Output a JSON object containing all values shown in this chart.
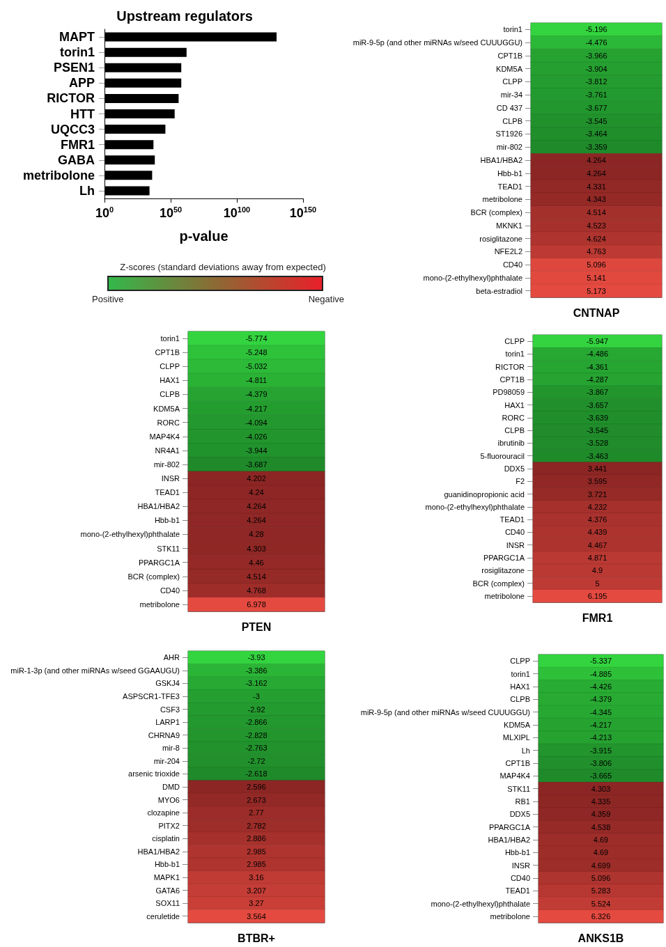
{
  "chart_data": [
    {
      "type": "bar",
      "title": "Upstream regulators",
      "xlabel": "p-value",
      "orientation": "horizontal",
      "log": "x",
      "color": "#000000",
      "grid": false,
      "categories": [
        "MAPT",
        "torin1",
        "PSEN1",
        "APP",
        "RICTOR",
        "HTT",
        "UQCC3",
        "FMR1",
        "GABA",
        "metribolone",
        "Lh"
      ],
      "values": [
        1e+130,
        1e+62,
        1e+58,
        1e+58,
        1e+56,
        1e+53,
        1e+46,
        1e+37,
        1e+38,
        1e+36,
        1e+34
      ],
      "xlim": [
        1,
        1e+150
      ],
      "xticks": [
        {
          "value": 1,
          "label": "10$^{0}$"
        },
        {
          "value": 1e+50,
          "label": "10$^{50}$"
        },
        {
          "value": 1e+100,
          "label": "10$^{100}$"
        },
        {
          "value": 1e+150,
          "label": "10$^{150}$"
        }
      ]
    },
    {
      "type": "other",
      "title": "Z-scores (standard deviations away from expected)",
      "annotations": [
        "Positive",
        "Negative"
      ],
      "colors": [
        "#33b84a",
        "#8c6a34",
        "#e8202a"
      ]
    },
    {
      "type": "heatmap",
      "xlabel": "CNTNAP",
      "categories": [
        null
      ],
      "data_labels": true,
      "y_categories": [
        "torin1",
        "miR-9-5p (and other miRNAs w/seed CUUUGGU)",
        "CPT1B",
        "KDM5A",
        "CLPP",
        "mir-34",
        "CD 437",
        "CLPB",
        "ST1926",
        "mir-802",
        "HBA1/HBA2",
        "Hbb-b1",
        "TEAD1",
        "metribolone",
        "BCR (complex)",
        "MKNK1",
        "rosiglitazone",
        "NFE2L2",
        "CD40",
        "mono-(2-ethylhexyl)phthalate",
        "beta-estradiol"
      ],
      "cells": [
        [
          -5.196
        ],
        [
          -4.476
        ],
        [
          -3.966
        ],
        [
          -3.904
        ],
        [
          -3.812
        ],
        [
          -3.761
        ],
        [
          -3.677
        ],
        [
          -3.545
        ],
        [
          -3.464
        ],
        [
          -3.359
        ],
        [
          4.264
        ],
        [
          4.264
        ],
        [
          4.331
        ],
        [
          4.343
        ],
        [
          4.514
        ],
        [
          4.523
        ],
        [
          4.624
        ],
        [
          4.763
        ],
        [
          5.096
        ],
        [
          5.141
        ],
        [
          5.173
        ]
      ]
    },
    {
      "type": "heatmap",
      "xlabel": "PTEN",
      "categories": [
        null
      ],
      "data_labels": true,
      "y_categories": [
        "torin1",
        "CPT1B",
        "CLPP",
        "HAX1",
        "CLPB",
        "KDM5A",
        "RORC",
        "MAP4K4",
        "NR4A1",
        "mir-802",
        "INSR",
        "TEAD1",
        "HBA1/HBA2",
        "Hbb-b1",
        "mono-(2-ethylhexyl)phthalate",
        "STK11",
        "PPARGC1A",
        "BCR (complex)",
        "CD40",
        "metribolone"
      ],
      "cells": [
        [
          -5.774
        ],
        [
          -5.248
        ],
        [
          -5.032
        ],
        [
          -4.811
        ],
        [
          -4.379
        ],
        [
          -4.217
        ],
        [
          -4.094
        ],
        [
          -4.026
        ],
        [
          -3.944
        ],
        [
          -3.687
        ],
        [
          4.202
        ],
        [
          4.24
        ],
        [
          4.264
        ],
        [
          4.264
        ],
        [
          4.28
        ],
        [
          4.303
        ],
        [
          4.46
        ],
        [
          4.514
        ],
        [
          4.768
        ],
        [
          6.978
        ]
      ]
    },
    {
      "type": "heatmap",
      "xlabel": "FMR1",
      "categories": [
        null
      ],
      "data_labels": true,
      "y_categories": [
        "CLPP",
        "torin1",
        "RICTOR",
        "CPT1B",
        "PD98059",
        "HAX1",
        "RORC",
        "CLPB",
        "ibrutinib",
        "5-fluorouracil",
        "DDX5",
        "F2",
        "guanidinopropionic acid",
        "mono-(2-ethylhexyl)phthalate",
        "TEAD1",
        "CD40",
        "INSR",
        "PPARGC1A",
        "rosiglitazone",
        "BCR (complex)",
        "metribolone"
      ],
      "cells": [
        [
          -5.947
        ],
        [
          -4.486
        ],
        [
          -4.361
        ],
        [
          -4.287
        ],
        [
          -3.867
        ],
        [
          -3.657
        ],
        [
          -3.639
        ],
        [
          -3.545
        ],
        [
          -3.528
        ],
        [
          -3.463
        ],
        [
          3.441
        ],
        [
          3.595
        ],
        [
          3.721
        ],
        [
          4.232
        ],
        [
          4.376
        ],
        [
          4.439
        ],
        [
          4.467
        ],
        [
          4.871
        ],
        [
          4.9
        ],
        [
          5.0
        ],
        [
          6.195
        ]
      ]
    },
    {
      "type": "heatmap",
      "xlabel": "BTBR+",
      "categories": [
        null
      ],
      "data_labels": true,
      "y_categories": [
        "AHR",
        "miR-1-3p (and other miRNAs w/seed GGAAUGU)",
        "GSKJ4",
        "ASPSCR1-TFE3",
        "CSF3",
        "LARP1",
        "CHRNA9",
        "mir-8",
        "mir-204",
        "arsenic trioxide",
        "DMD",
        "MYO6",
        "clozapine",
        "PITX2",
        "cisplatin",
        "HBA1/HBA2",
        "Hbb-b1",
        "MAPK1",
        "GATA6",
        "SOX11",
        "ceruletide"
      ],
      "cells": [
        [
          -3.93
        ],
        [
          -3.386
        ],
        [
          -3.162
        ],
        [
          -3.0
        ],
        [
          -2.92
        ],
        [
          -2.866
        ],
        [
          -2.828
        ],
        [
          -2.763
        ],
        [
          -2.72
        ],
        [
          -2.618
        ],
        [
          2.596
        ],
        [
          2.673
        ],
        [
          2.77
        ],
        [
          2.782
        ],
        [
          2.886
        ],
        [
          2.985
        ],
        [
          2.985
        ],
        [
          3.16
        ],
        [
          3.207
        ],
        [
          3.27
        ],
        [
          3.564
        ]
      ]
    },
    {
      "type": "heatmap",
      "xlabel": "ANKS1B",
      "categories": [
        null
      ],
      "data_labels": true,
      "y_categories": [
        "CLPP",
        "torin1",
        "HAX1",
        "CLPB",
        "miR-9-5p (and other miRNAs w/seed CUUUGGU)",
        "KDM5A",
        "MLXIPL",
        "Lh",
        "CPT1B",
        "MAP4K4",
        "STK11",
        "RB1",
        "DDX5",
        "PPARGC1A",
        "HBA1/HBA2",
        "Hbb-b1",
        "INSR",
        "CD40",
        "TEAD1",
        "mono-(2-ethylhexyl)phthalate",
        "metribolone"
      ],
      "cells": [
        [
          -5.337
        ],
        [
          -4.885
        ],
        [
          -4.426
        ],
        [
          -4.379
        ],
        [
          -4.345
        ],
        [
          -4.217
        ],
        [
          -4.213
        ],
        [
          -3.915
        ],
        [
          -3.806
        ],
        [
          -3.665
        ],
        [
          4.303
        ],
        [
          4.335
        ],
        [
          4.359
        ],
        [
          4.538
        ],
        [
          4.69
        ],
        [
          4.69
        ],
        [
          4.699
        ],
        [
          5.096
        ],
        [
          5.283
        ],
        [
          5.524
        ],
        [
          6.326
        ]
      ]
    }
  ]
}
